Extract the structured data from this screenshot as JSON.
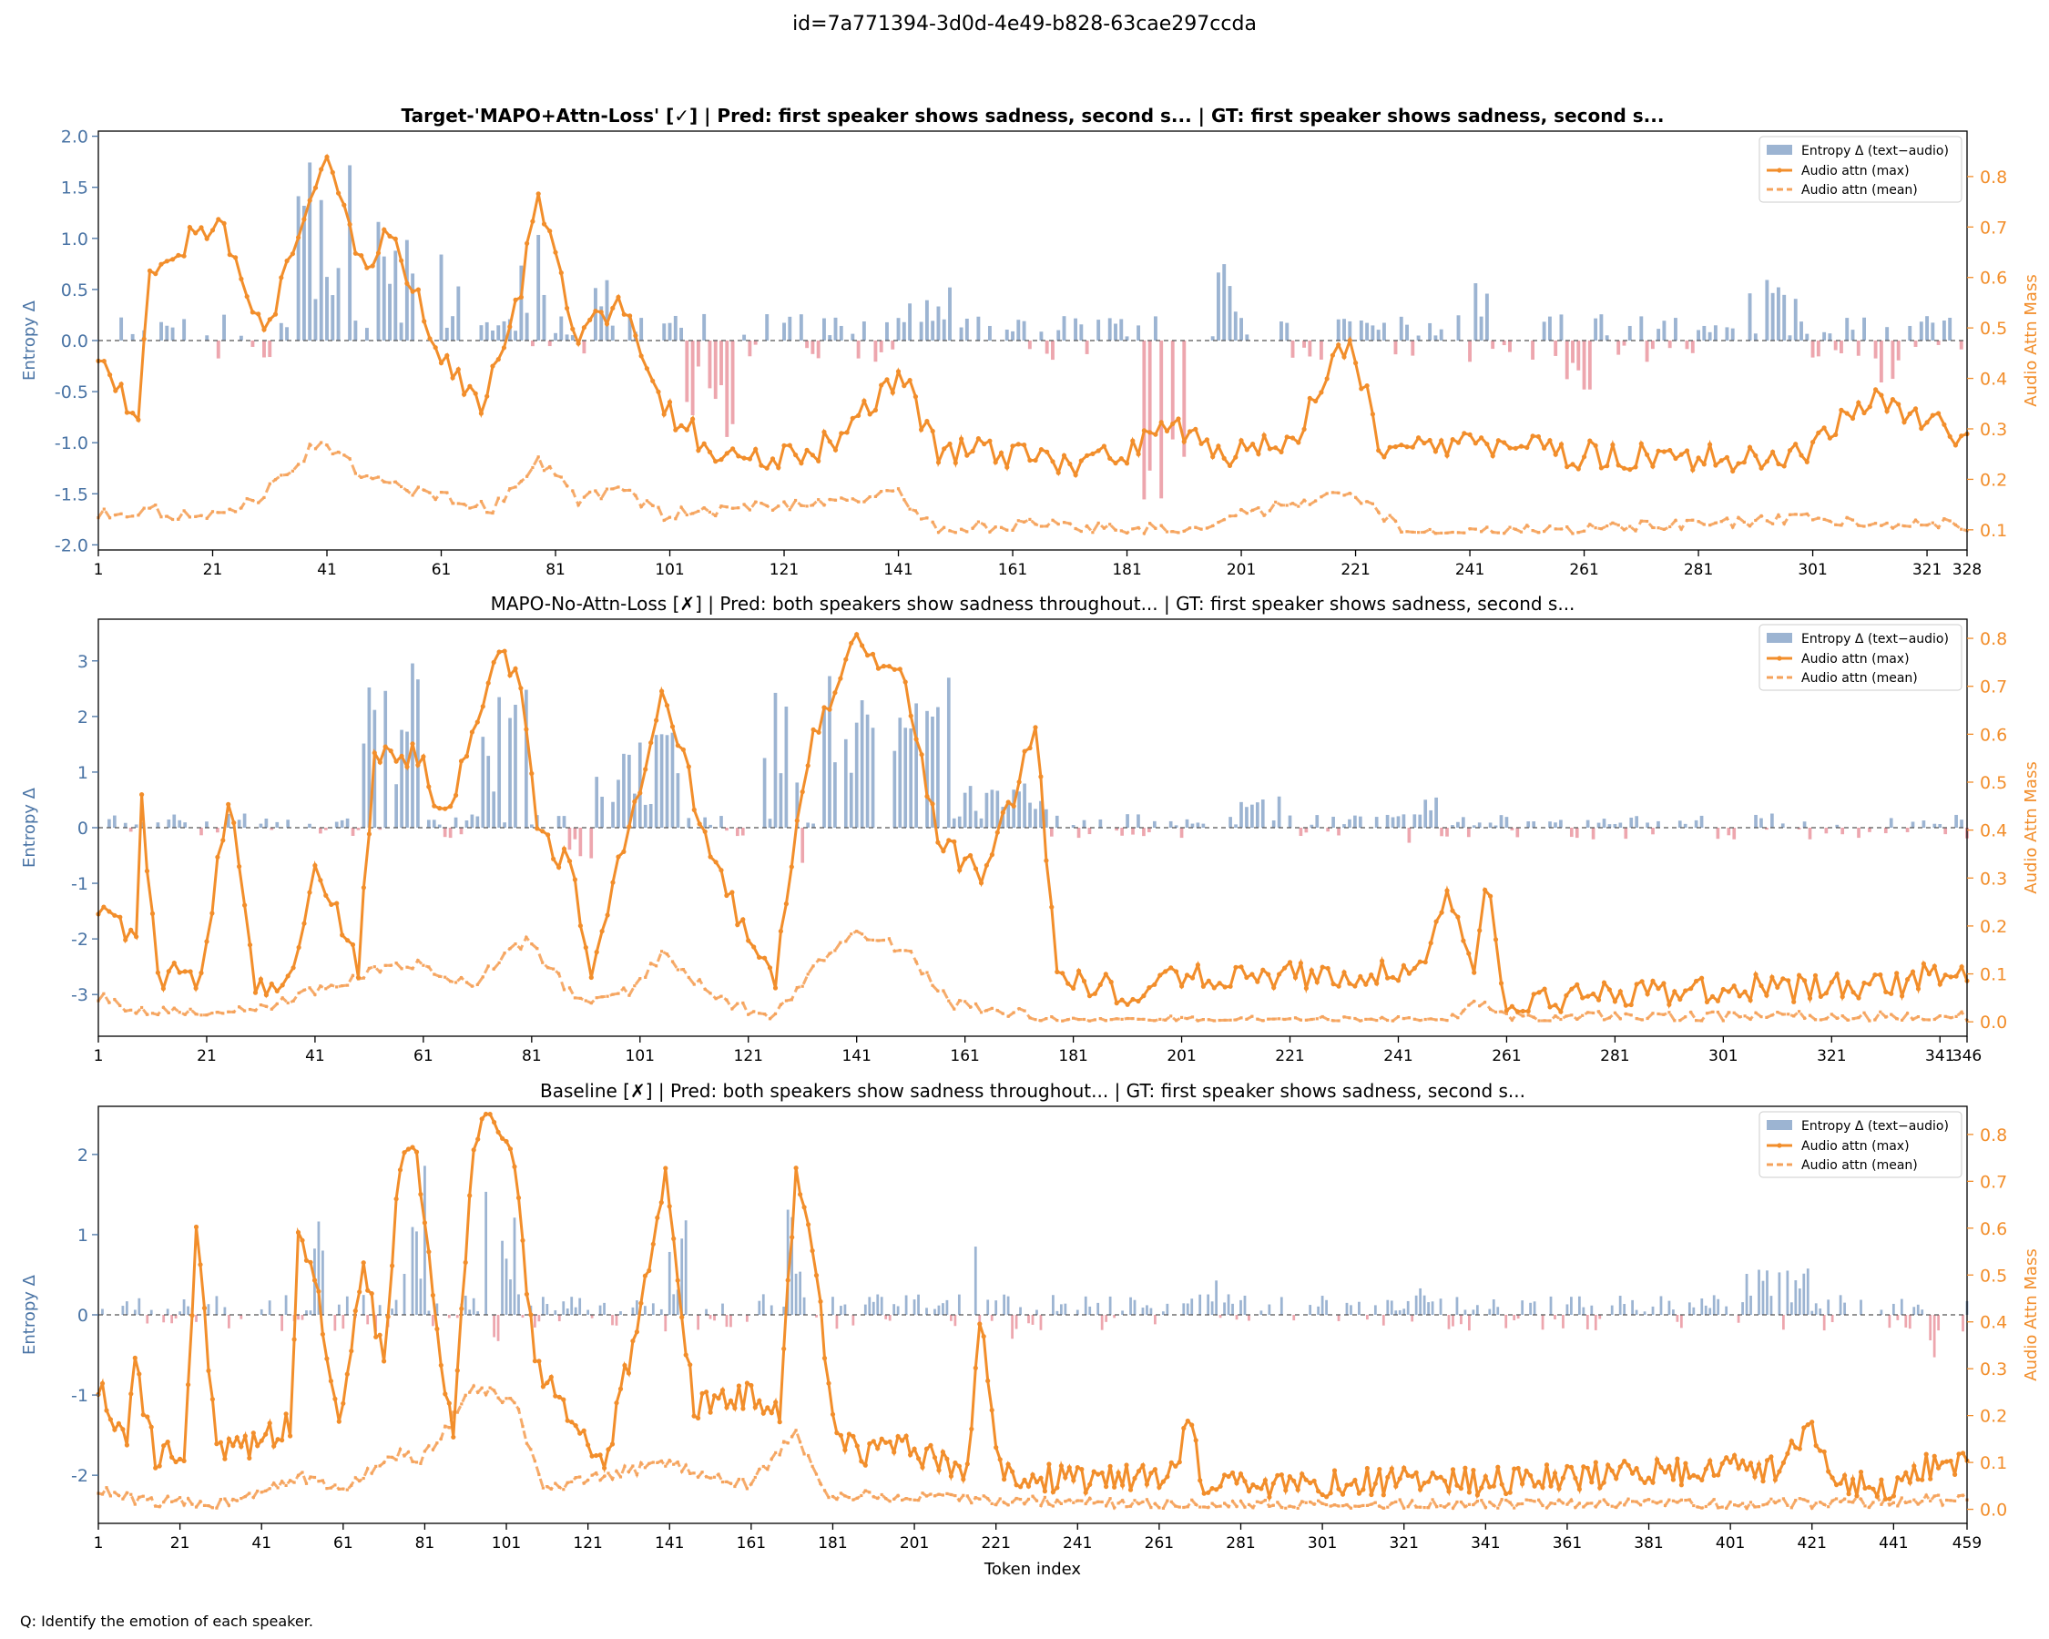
{
  "figure": {
    "suptitle": "id=7a771394-3d0d-4e49-b828-63cae297ccda",
    "question": "Q: Identify the emotion of each speaker."
  },
  "colors": {
    "bar_pos": "#9cb4d2",
    "bar_neg": "#eda6ae",
    "line_max": "#f28e2b",
    "line_mean": "#f5a35c",
    "left_axis": "#4a74a5",
    "right_axis": "#f28e2b",
    "zero_line": "#555555"
  },
  "chart_data": [
    {
      "type": "bar+line",
      "title": "Target-'MAPO+Attn-Loss' [✓]  |  Pred: first speaker shows sadness, second s...  |  GT: first speaker shows sadness, second s...",
      "title_bold": true,
      "xlabel": "",
      "ylabel_left": "Entropy Δ",
      "ylabel_right": "Audio Attn Mass",
      "n_tokens": 328,
      "xlim": [
        1,
        328
      ],
      "ylim_left": [
        -2.05,
        2.05
      ],
      "ylim_right": [
        0.06,
        0.89
      ],
      "yticks_left": [
        -2.0,
        -1.5,
        -1.0,
        -0.5,
        0.0,
        0.5,
        1.0,
        1.5,
        2.0
      ],
      "ytick_labels_left": [
        "-2.0",
        "-1.5",
        "-1.0",
        "-0.5",
        "0.0",
        "0.5",
        "1.0",
        "1.5",
        "2.0"
      ],
      "yticks_right": [
        0.1,
        0.2,
        0.3,
        0.4,
        0.5,
        0.6,
        0.7,
        0.8
      ],
      "ytick_labels_right": [
        "0.1",
        "0.2",
        "0.3",
        "0.4",
        "0.5",
        "0.6",
        "0.7",
        "0.8"
      ],
      "xticks": [
        1,
        21,
        41,
        61,
        81,
        101,
        121,
        141,
        161,
        181,
        201,
        221,
        241,
        261,
        281,
        301,
        321,
        328
      ],
      "legend": [
        "Entropy Δ (text−audio)",
        "Audio attn (max)",
        "Audio attn (mean)"
      ],
      "legend_position": "top-right",
      "seed": 11,
      "entropy_peaks": [
        [
          36,
          46,
          1.75
        ],
        [
          50,
          56,
          1.2
        ],
        [
          61,
          64,
          0.9
        ],
        [
          75,
          79,
          1.05
        ],
        [
          88,
          90,
          0.8
        ],
        [
          141,
          152,
          0.75
        ],
        [
          197,
          201,
          0.75
        ],
        [
          242,
          244,
          0.65
        ],
        [
          290,
          300,
          0.6
        ]
      ],
      "entropy_neg_peaks": [
        [
          103,
          112,
          -0.95
        ],
        [
          184,
          191,
          -1.8
        ],
        [
          258,
          264,
          -0.5
        ],
        [
          309,
          315,
          -0.5
        ]
      ],
      "attn_max_knots": [
        [
          1,
          0.45
        ],
        [
          8,
          0.32
        ],
        [
          10,
          0.62
        ],
        [
          22,
          0.72
        ],
        [
          30,
          0.48
        ],
        [
          41,
          0.84
        ],
        [
          48,
          0.6
        ],
        [
          52,
          0.7
        ],
        [
          60,
          0.46
        ],
        [
          68,
          0.36
        ],
        [
          75,
          0.58
        ],
        [
          78,
          0.78
        ],
        [
          85,
          0.47
        ],
        [
          92,
          0.56
        ],
        [
          100,
          0.35
        ],
        [
          108,
          0.26
        ],
        [
          117,
          0.23
        ],
        [
          130,
          0.27
        ],
        [
          141,
          0.41
        ],
        [
          148,
          0.26
        ],
        [
          160,
          0.25
        ],
        [
          172,
          0.23
        ],
        [
          182,
          0.26
        ],
        [
          187,
          0.33
        ],
        [
          196,
          0.25
        ],
        [
          210,
          0.27
        ],
        [
          220,
          0.49
        ],
        [
          226,
          0.24
        ],
        [
          240,
          0.27
        ],
        [
          260,
          0.25
        ],
        [
          280,
          0.24
        ],
        [
          300,
          0.24
        ],
        [
          306,
          0.32
        ],
        [
          312,
          0.35
        ],
        [
          320,
          0.31
        ],
        [
          328,
          0.29
        ]
      ],
      "attn_mean_knots": [
        [
          1,
          0.13
        ],
        [
          10,
          0.14
        ],
        [
          20,
          0.12
        ],
        [
          30,
          0.17
        ],
        [
          40,
          0.28
        ],
        [
          48,
          0.2
        ],
        [
          60,
          0.17
        ],
        [
          70,
          0.14
        ],
        [
          78,
          0.24
        ],
        [
          85,
          0.16
        ],
        [
          92,
          0.18
        ],
        [
          100,
          0.13
        ],
        [
          141,
          0.17
        ],
        [
          148,
          0.1
        ],
        [
          160,
          0.11
        ],
        [
          190,
          0.1
        ],
        [
          220,
          0.18
        ],
        [
          230,
          0.09
        ],
        [
          260,
          0.1
        ],
        [
          300,
          0.12
        ],
        [
          328,
          0.11
        ]
      ]
    },
    {
      "type": "bar+line",
      "title": "MAPO-No-Attn-Loss [✗]  |  Pred: both speakers show sadness throughout...  |  GT: first speaker shows sadness, second s...",
      "title_bold": false,
      "xlabel": "",
      "ylabel_left": "Entropy Δ",
      "ylabel_right": "Audio Attn Mass",
      "n_tokens": 346,
      "xlim": [
        1,
        346
      ],
      "ylim_left": [
        -3.75,
        3.75
      ],
      "ylim_right": [
        -0.03,
        0.84
      ],
      "yticks_left": [
        -3,
        -2,
        -1,
        0,
        1,
        2,
        3
      ],
      "ytick_labels_left": [
        "-3",
        "-2",
        "-1",
        "0",
        "1",
        "2",
        "3"
      ],
      "yticks_right": [
        0.0,
        0.1,
        0.2,
        0.3,
        0.4,
        0.5,
        0.6,
        0.7,
        0.8
      ],
      "ytick_labels_right": [
        "0.0",
        "0.1",
        "0.2",
        "0.3",
        "0.4",
        "0.5",
        "0.6",
        "0.7",
        "0.8"
      ],
      "xticks": [
        1,
        21,
        41,
        61,
        81,
        101,
        121,
        141,
        161,
        181,
        201,
        221,
        241,
        261,
        281,
        301,
        321,
        341,
        346
      ],
      "legend": [
        "Entropy Δ (text−audio)",
        "Audio attn (max)",
        "Audio attn (mean)"
      ],
      "legend_position": "top-right",
      "seed": 23,
      "entropy_peaks": [
        [
          50,
          62,
          3.4
        ],
        [
          72,
          80,
          2.8
        ],
        [
          92,
          108,
          1.8
        ],
        [
          124,
          158,
          2.9
        ],
        [
          160,
          176,
          0.8
        ],
        [
          212,
          220,
          0.6
        ],
        [
          244,
          248,
          0.7
        ],
        [
          280,
          284,
          0.3
        ]
      ],
      "entropy_neg_peaks": [
        [
          88,
          92,
          -0.7
        ],
        [
          131,
          134,
          -0.7
        ],
        [
          243,
          246,
          -0.4
        ]
      ],
      "attn_max_knots": [
        [
          1,
          0.24
        ],
        [
          8,
          0.18
        ],
        [
          9,
          0.46
        ],
        [
          12,
          0.1
        ],
        [
          20,
          0.09
        ],
        [
          25,
          0.48
        ],
        [
          30,
          0.08
        ],
        [
          37,
          0.09
        ],
        [
          41,
          0.34
        ],
        [
          49,
          0.12
        ],
        [
          52,
          0.56
        ],
        [
          60,
          0.55
        ],
        [
          65,
          0.42
        ],
        [
          75,
          0.78
        ],
        [
          79,
          0.72
        ],
        [
          82,
          0.4
        ],
        [
          88,
          0.32
        ],
        [
          92,
          0.12
        ],
        [
          100,
          0.44
        ],
        [
          105,
          0.7
        ],
        [
          115,
          0.32
        ],
        [
          120,
          0.2
        ],
        [
          126,
          0.1
        ],
        [
          132,
          0.55
        ],
        [
          140,
          0.8
        ],
        [
          150,
          0.7
        ],
        [
          156,
          0.38
        ],
        [
          165,
          0.3
        ],
        [
          174,
          0.62
        ],
        [
          178,
          0.1
        ],
        [
          190,
          0.06
        ],
        [
          200,
          0.09
        ],
        [
          244,
          0.1
        ],
        [
          250,
          0.26
        ],
        [
          255,
          0.1
        ],
        [
          257,
          0.3
        ],
        [
          261,
          0.03
        ],
        [
          280,
          0.06
        ],
        [
          300,
          0.07
        ],
        [
          310,
          0.07
        ],
        [
          330,
          0.07
        ],
        [
          340,
          0.1
        ],
        [
          346,
          0.09
        ]
      ],
      "attn_mean_knots": [
        [
          1,
          0.05
        ],
        [
          10,
          0.02
        ],
        [
          30,
          0.02
        ],
        [
          50,
          0.1
        ],
        [
          60,
          0.12
        ],
        [
          70,
          0.08
        ],
        [
          80,
          0.17
        ],
        [
          90,
          0.04
        ],
        [
          100,
          0.07
        ],
        [
          105,
          0.14
        ],
        [
          115,
          0.05
        ],
        [
          125,
          0.01
        ],
        [
          140,
          0.19
        ],
        [
          150,
          0.15
        ],
        [
          158,
          0.04
        ],
        [
          180,
          0.0
        ],
        [
          250,
          0.0
        ],
        [
          256,
          0.04
        ],
        [
          262,
          0.01
        ],
        [
          346,
          0.01
        ]
      ]
    },
    {
      "type": "bar+line",
      "title": "Baseline [✗]  |  Pred: both speakers show sadness throughout...  |  GT: first speaker shows sadness, second s...",
      "title_bold": false,
      "xlabel": "Token index",
      "ylabel_left": "Entropy Δ",
      "ylabel_right": "Audio Attn Mass",
      "n_tokens": 459,
      "xlim": [
        1,
        459
      ],
      "ylim_left": [
        -2.6,
        2.6
      ],
      "ylim_right": [
        -0.03,
        0.86
      ],
      "yticks_left": [
        -2,
        -1,
        0,
        1,
        2
      ],
      "ytick_labels_left": [
        "-2",
        "-1",
        "0",
        "1",
        "2"
      ],
      "yticks_right": [
        0.0,
        0.1,
        0.2,
        0.3,
        0.4,
        0.5,
        0.6,
        0.7,
        0.8
      ],
      "ytick_labels_right": [
        "0.0",
        "0.1",
        "0.2",
        "0.3",
        "0.4",
        "0.5",
        "0.6",
        "0.7",
        "0.8"
      ],
      "xticks": [
        1,
        21,
        41,
        61,
        81,
        101,
        121,
        141,
        161,
        181,
        201,
        221,
        241,
        261,
        281,
        301,
        321,
        341,
        361,
        381,
        401,
        421,
        441,
        459
      ],
      "legend": [
        "Entropy Δ (text−audio)",
        "Audio attn (max)",
        "Audio attn (mean)"
      ],
      "legend_position": "top-right",
      "seed": 37,
      "entropy_peaks": [
        [
          54,
          56,
          1.8
        ],
        [
          76,
          82,
          2.0
        ],
        [
          95,
          104,
          1.8
        ],
        [
          141,
          145,
          1.3
        ],
        [
          169,
          177,
          2.1
        ],
        [
          216,
          218,
          1.4
        ],
        [
          271,
          275,
          0.8
        ],
        [
          320,
          330,
          0.5
        ],
        [
          404,
          420,
          0.6
        ]
      ],
      "entropy_neg_peaks": [
        [
          98,
          101,
          -0.8
        ],
        [
          225,
          232,
          -0.4
        ],
        [
          450,
          452,
          -0.7
        ]
      ],
      "attn_max_knots": [
        [
          1,
          0.26
        ],
        [
          8,
          0.15
        ],
        [
          10,
          0.3
        ],
        [
          15,
          0.11
        ],
        [
          22,
          0.13
        ],
        [
          25,
          0.59
        ],
        [
          30,
          0.12
        ],
        [
          40,
          0.14
        ],
        [
          48,
          0.18
        ],
        [
          50,
          0.58
        ],
        [
          55,
          0.45
        ],
        [
          60,
          0.2
        ],
        [
          66,
          0.52
        ],
        [
          71,
          0.3
        ],
        [
          75,
          0.75
        ],
        [
          79,
          0.78
        ],
        [
          85,
          0.3
        ],
        [
          88,
          0.18
        ],
        [
          93,
          0.78
        ],
        [
          97,
          0.83
        ],
        [
          103,
          0.76
        ],
        [
          108,
          0.3
        ],
        [
          115,
          0.22
        ],
        [
          125,
          0.08
        ],
        [
          132,
          0.36
        ],
        [
          140,
          0.7
        ],
        [
          147,
          0.22
        ],
        [
          160,
          0.24
        ],
        [
          168,
          0.2
        ],
        [
          172,
          0.73
        ],
        [
          176,
          0.55
        ],
        [
          182,
          0.15
        ],
        [
          190,
          0.12
        ],
        [
          200,
          0.13
        ],
        [
          214,
          0.08
        ],
        [
          217,
          0.42
        ],
        [
          222,
          0.08
        ],
        [
          240,
          0.06
        ],
        [
          265,
          0.07
        ],
        [
          268,
          0.19
        ],
        [
          272,
          0.05
        ],
        [
          320,
          0.06
        ],
        [
          340,
          0.06
        ],
        [
          412,
          0.09
        ],
        [
          421,
          0.19
        ],
        [
          426,
          0.06
        ],
        [
          440,
          0.04
        ],
        [
          451,
          0.1
        ],
        [
          459,
          0.09
        ]
      ],
      "attn_mean_knots": [
        [
          1,
          0.04
        ],
        [
          10,
          0.02
        ],
        [
          30,
          0.01
        ],
        [
          50,
          0.07
        ],
        [
          60,
          0.04
        ],
        [
          75,
          0.12
        ],
        [
          80,
          0.1
        ],
        [
          93,
          0.26
        ],
        [
          103,
          0.23
        ],
        [
          110,
          0.04
        ],
        [
          140,
          0.1
        ],
        [
          160,
          0.05
        ],
        [
          172,
          0.16
        ],
        [
          180,
          0.03
        ],
        [
          260,
          0.01
        ],
        [
          400,
          0.01
        ],
        [
          459,
          0.02
        ]
      ]
    }
  ]
}
